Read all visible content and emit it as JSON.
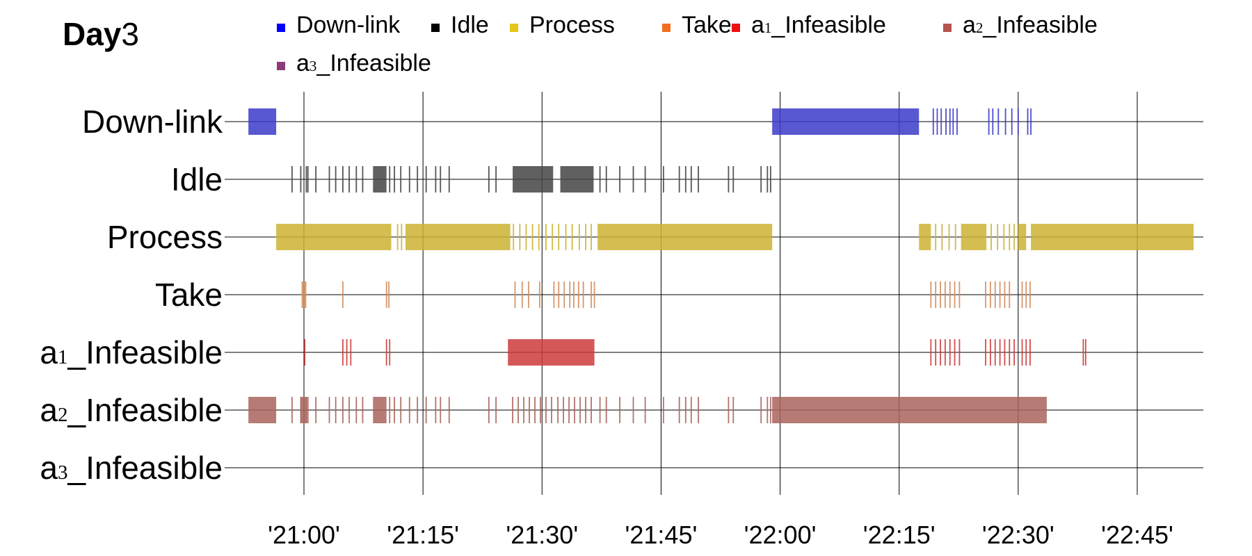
{
  "chart_data": {
    "type": "timeline",
    "title_bold": "Day",
    "title_rest": "3",
    "x_range": [
      "20:53",
      "22:52"
    ],
    "x_ticks": [
      "'21:00'",
      "'21:15'",
      "'21:30'",
      "'21:45'",
      "'22:00'",
      "'22:15'",
      "'22:30'",
      "'22:45'"
    ],
    "grid": true,
    "legend_position": "top",
    "rows": [
      {
        "base": "Down-link",
        "sub": "",
        "suffix": ""
      },
      {
        "base": "Idle",
        "sub": "",
        "suffix": ""
      },
      {
        "base": "Process",
        "sub": "",
        "suffix": ""
      },
      {
        "base": "Take",
        "sub": "",
        "suffix": ""
      },
      {
        "base": "a",
        "sub": "1",
        "suffix": "_Infeasible"
      },
      {
        "base": "a",
        "sub": "2",
        "suffix": "_Infeasible"
      },
      {
        "base": "a",
        "sub": "3",
        "suffix": "_Infeasible"
      }
    ],
    "legend": [
      {
        "base": "Down-link",
        "sub": "",
        "suffix": "",
        "swatch": "#0000ff"
      },
      {
        "base": "Idle",
        "sub": "",
        "suffix": "",
        "swatch": "#000000"
      },
      {
        "base": "Process",
        "sub": "",
        "suffix": "",
        "swatch": "#e6c619"
      },
      {
        "base": "Take",
        "sub": "",
        "suffix": "",
        "swatch": "#f07020"
      },
      {
        "base": "a",
        "sub": "1",
        "suffix": "_Infeasible",
        "swatch": "#ee1111"
      },
      {
        "base": "a",
        "sub": "2",
        "suffix": "_Infeasible",
        "swatch": "#b5554d"
      },
      {
        "base": "a",
        "sub": "3",
        "suffix": "_Infeasible",
        "swatch": "#8b3a7a"
      }
    ],
    "series": [
      {
        "name": "Down-link",
        "row": 0,
        "color": "#3b3bc8",
        "blocks": [
          [
            "20:53",
            "20:56.5"
          ],
          [
            "21:59",
            "22:17.5"
          ]
        ],
        "ticks": [
          "22:19.3",
          "22:19.8",
          "22:20.3",
          "22:20.9",
          "22:21.4",
          "22:21.8",
          "22:22.3",
          "22:26.3",
          "22:26.8",
          "22:27.5",
          "22:28.4",
          "22:29.2",
          "22:30",
          "22:31.2",
          "22:31.6"
        ]
      },
      {
        "name": "Idle",
        "row": 1,
        "color": "#444444",
        "blocks": [
          [
            "21:08.7",
            "21:10.4"
          ],
          [
            "21:26.3",
            "21:31.4"
          ],
          [
            "21:32.3",
            "21:36.5"
          ]
        ],
        "ticks": [
          "20:59.6",
          "20:60.3",
          "21:00.5",
          "20:58.5",
          "21:01.5",
          "21:03.2",
          "21:04",
          "21:04.9",
          "21:05.7",
          "21:06.6",
          "21:07.4",
          "21:10.8",
          "21:11.4",
          "21:12.2",
          "21:13.3",
          "21:14.3",
          "21:15.4",
          "21:16.6",
          "21:17.2",
          "21:18.3",
          "21:23.3",
          "21:24.2",
          "21:37.3",
          "21:38.1",
          "21:39.8",
          "21:41.5",
          "21:43",
          "21:45.3",
          "21:47.3",
          "21:48.1",
          "21:48.8",
          "21:49.7",
          "21:53.5",
          "21:54.1",
          "21:57.6",
          "21:58.4",
          "21:58.8"
        ]
      },
      {
        "name": "Process",
        "row": 2,
        "color": "#ccb333",
        "blocks": [
          [
            "20:56.5",
            "21:11"
          ],
          [
            "21:12.8",
            "21:26"
          ],
          [
            "21:37",
            "21:59"
          ],
          [
            "22:17.5",
            "22:19"
          ],
          [
            "22:22.8",
            "22:26"
          ],
          [
            "22:30",
            "22:31"
          ],
          [
            "22:31.6",
            "22:52.1"
          ]
        ],
        "ticks": [
          "21:11.8",
          "21:12.3",
          "21:26.4",
          "21:27.2",
          "21:28",
          "21:28.8",
          "21:29.6",
          "21:30.5",
          "21:31.3",
          "21:32.1",
          "21:33",
          "21:33.8",
          "21:34.7",
          "21:35.5",
          "21:36.2",
          "22:19.6",
          "22:20.4",
          "22:21.3",
          "22:22.1",
          "22:26.6",
          "22:27.4",
          "22:28.2",
          "22:28.9",
          "22:29.5"
        ]
      },
      {
        "name": "Take",
        "row": 3,
        "color": "#d08c5c",
        "blocks": [
          [
            "20:59.7",
            "21:00.3"
          ]
        ],
        "ticks": [
          "21:04.9",
          "21:10.4",
          "21:10.7",
          "21:26.6",
          "21:27.5",
          "21:28.3",
          "21:29.7",
          "21:31.5",
          "21:32.1",
          "21:32.8",
          "21:33.5",
          "21:34",
          "21:34.6",
          "21:35.2",
          "21:36.2",
          "21:36.6",
          "22:19",
          "22:19.6",
          "22:20.2",
          "22:20.8",
          "22:21.4",
          "22:22",
          "22:22.6",
          "22:25.9",
          "22:26.5",
          "22:27.1",
          "22:27.7",
          "22:28.3",
          "22:28.9",
          "22:30.5",
          "22:31",
          "22:31.5"
        ]
      },
      {
        "name": "a1_Infeasible",
        "row": 4,
        "color": "#cc3b3b",
        "blocks": [
          [
            "21:25.7",
            "21:36.6"
          ]
        ],
        "ticks": [
          "21:00.1",
          "21:04.9",
          "21:05.4",
          "21:05.9",
          "21:10.4",
          "21:10.8",
          "22:19",
          "22:19.6",
          "22:20.2",
          "22:20.8",
          "22:21.4",
          "22:22",
          "22:22.6",
          "22:25.9",
          "22:26.5",
          "22:27.1",
          "22:27.7",
          "22:28.3",
          "22:28.9",
          "22:29.5",
          "22:30.5",
          "22:31",
          "22:31.5",
          "22:38.2",
          "22:38.5"
        ]
      },
      {
        "name": "a2_Infeasible",
        "row": 5,
        "color": "#a8645c",
        "blocks": [
          [
            "20:53",
            "20:56.5"
          ],
          [
            "21:08.7",
            "21:10.4"
          ],
          [
            "21:59",
            "22:33.6"
          ],
          [
            "20:59.6",
            "21:00.4"
          ]
        ],
        "ticks": [
          "20:59.6",
          "21:00.3",
          "21:00.5",
          "20:58.5",
          "21:01.5",
          "21:03.2",
          "21:04",
          "21:04.9",
          "21:05.7",
          "21:06.6",
          "21:07.4",
          "21:10.8",
          "21:11.4",
          "21:12.2",
          "21:13.3",
          "21:14.3",
          "21:15.4",
          "21:16.6",
          "21:17.2",
          "21:18.3",
          "21:23.3",
          "21:24.2",
          "21:26.3",
          "21:27",
          "21:27.7",
          "21:28.4",
          "21:29.1",
          "21:29.8",
          "21:30.5",
          "21:31.2",
          "21:32",
          "21:32.7",
          "21:33.4",
          "21:34.1",
          "21:34.8",
          "21:35.5",
          "21:36.2",
          "21:37.3",
          "21:38.1",
          "21:39.8",
          "21:41.5",
          "21:43",
          "21:45.3",
          "21:47.3",
          "21:48.1",
          "21:48.8",
          "21:49.7",
          "21:53.5",
          "21:54.1",
          "21:57.6",
          "21:58.4",
          "21:58.8"
        ]
      },
      {
        "name": "a3_Infeasible",
        "row": 6,
        "color": "#8b3a7a",
        "blocks": [],
        "ticks": []
      }
    ]
  }
}
